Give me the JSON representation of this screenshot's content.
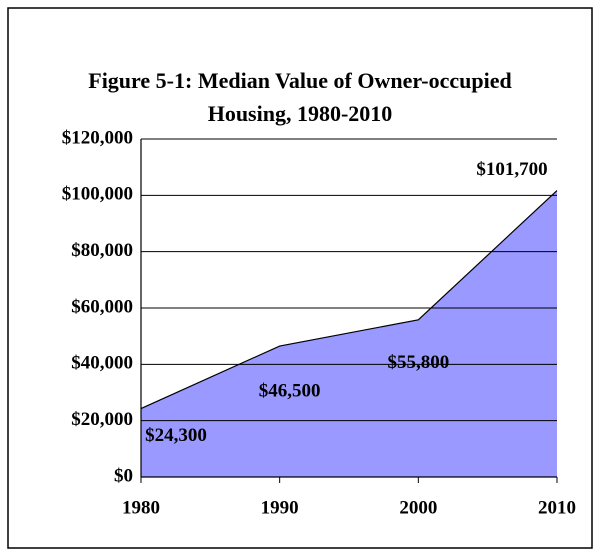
{
  "chart_data": {
    "type": "area",
    "title": "Figure 5-1: Median Value of Owner-occupied Housing, 1980-2010",
    "categories": [
      "1980",
      "1990",
      "2000",
      "2010"
    ],
    "values": [
      24300,
      46500,
      55800,
      101700
    ],
    "value_labels": [
      "$24,300",
      "$46,500",
      "$55,800",
      "$101,700"
    ],
    "color": "#9999ff",
    "ylim": [
      0,
      120000
    ],
    "yticks": [
      {
        "value": 0,
        "label": "$0"
      },
      {
        "value": 20000,
        "label": "$20,000"
      },
      {
        "value": 40000,
        "label": "$40,000"
      },
      {
        "value": 60000,
        "label": "$60,000"
      },
      {
        "value": 80000,
        "label": "$80,000"
      },
      {
        "value": 100000,
        "label": "$100,000"
      },
      {
        "value": 120000,
        "label": "$120,000"
      }
    ],
    "grid": true
  }
}
